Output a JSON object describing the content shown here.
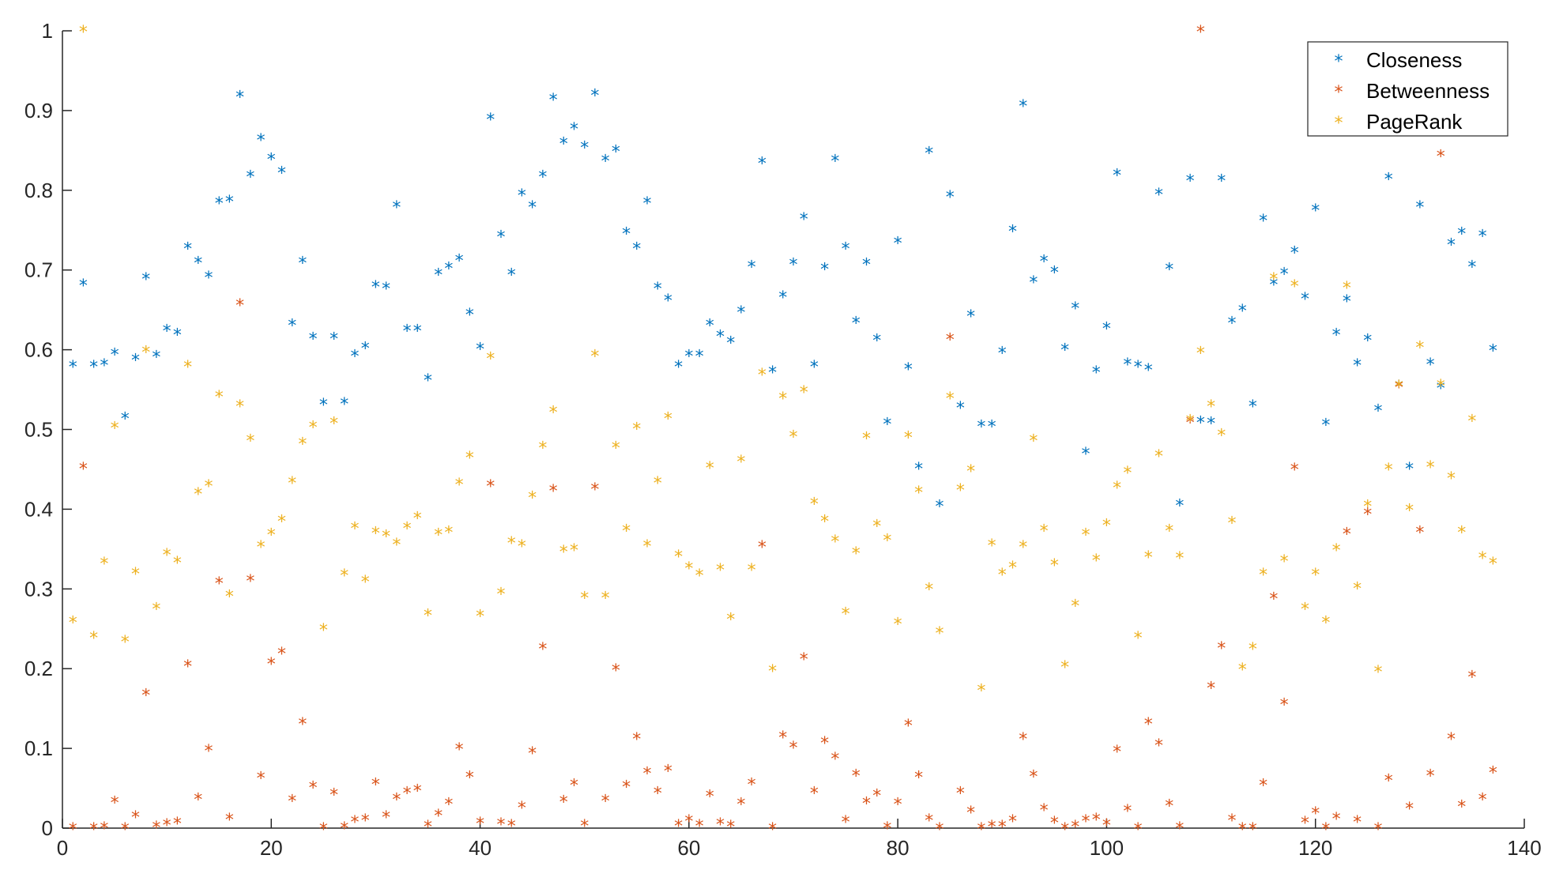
{
  "chart_data": {
    "type": "scatter",
    "title": "",
    "xlabel": "",
    "ylabel": "",
    "xlim": [
      0,
      140
    ],
    "ylim": [
      0,
      1
    ],
    "xticks": [
      "0",
      "20",
      "40",
      "60",
      "80",
      "100",
      "120",
      "140"
    ],
    "yticks": [
      "0",
      "0.1",
      "0.2",
      "0.3",
      "0.4",
      "0.5",
      "0.6",
      "0.7",
      "0.8",
      "0.9",
      "1"
    ],
    "grid": false,
    "marker": "*",
    "legend": {
      "position": "top-right"
    },
    "series": [
      {
        "name": "Closeness",
        "color": "#0072BD",
        "x": [
          1,
          2,
          3,
          4,
          5,
          6,
          7,
          8,
          9,
          10,
          11,
          12,
          13,
          14,
          15,
          16,
          17,
          18,
          19,
          20,
          21,
          22,
          23,
          24,
          25,
          26,
          27,
          28,
          29,
          30,
          31,
          32,
          33,
          34,
          35,
          36,
          37,
          38,
          39,
          40,
          41,
          42,
          43,
          44,
          45,
          46,
          47,
          48,
          49,
          50,
          51,
          52,
          53,
          54,
          55,
          56,
          57,
          58,
          59,
          60,
          61,
          62,
          63,
          64,
          65,
          66,
          67,
          68,
          69,
          70,
          71,
          72,
          73,
          74,
          75,
          76,
          77,
          78,
          79,
          80,
          81,
          82,
          83,
          84,
          85,
          86,
          87,
          88,
          89,
          90,
          91,
          92,
          93,
          94,
          95,
          96,
          97,
          98,
          99,
          100,
          101,
          102,
          103,
          104,
          105,
          106,
          107,
          108,
          109,
          110,
          111,
          112,
          113,
          114,
          115,
          116,
          117,
          118,
          119,
          120,
          121,
          122,
          123,
          124,
          125,
          126,
          127,
          128,
          129,
          130,
          131,
          132,
          133,
          134,
          135,
          136,
          137
        ],
        "y": [
          0.58,
          0.682,
          0.58,
          0.582,
          0.595,
          0.515,
          0.588,
          0.69,
          0.592,
          0.625,
          0.62,
          0.728,
          0.71,
          0.692,
          0.785,
          0.787,
          0.918,
          0.818,
          0.864,
          0.84,
          0.823,
          0.632,
          0.71,
          0.615,
          0.532,
          0.615,
          0.533,
          0.593,
          0.603,
          0.68,
          0.678,
          0.78,
          0.625,
          0.625,
          0.563,
          0.695,
          0.703,
          0.713,
          0.645,
          0.602,
          0.89,
          0.743,
          0.695,
          0.795,
          0.78,
          0.818,
          0.915,
          0.86,
          0.878,
          0.855,
          0.92,
          0.838,
          0.85,
          0.747,
          0.728,
          0.785,
          0.678,
          0.663,
          0.58,
          0.593,
          0.593,
          0.632,
          0.618,
          0.61,
          0.648,
          0.705,
          0.835,
          0.573,
          0.667,
          0.708,
          0.765,
          0.58,
          0.702,
          0.838,
          0.728,
          0.635,
          0.708,
          0.613,
          0.508,
          0.735,
          0.577,
          0.452,
          0.848,
          0.405,
          0.793,
          0.528,
          0.643,
          0.505,
          0.505,
          0.597,
          0.75,
          0.907,
          0.686,
          0.712,
          0.698,
          0.601,
          0.653,
          0.471,
          0.573,
          0.628,
          0.82,
          0.583,
          0.58,
          0.576,
          0.796,
          0.702,
          0.406,
          0.813,
          0.51,
          0.509,
          0.813,
          0.635,
          0.65,
          0.53,
          0.763,
          0.683,
          0.696,
          0.723,
          0.665,
          0.776,
          0.507,
          0.62,
          0.662,
          0.582,
          0.613,
          0.525,
          0.815,
          0.555,
          0.452,
          0.78,
          0.583,
          0.553,
          0.733,
          0.747,
          0.705,
          0.744,
          0.6
        ]
      },
      {
        "name": "Betweenness",
        "color": "#D95319",
        "x": [
          1,
          2,
          3,
          4,
          5,
          6,
          7,
          8,
          9,
          10,
          11,
          12,
          13,
          14,
          15,
          16,
          17,
          18,
          19,
          20,
          21,
          22,
          23,
          24,
          25,
          26,
          27,
          28,
          29,
          30,
          31,
          32,
          33,
          34,
          35,
          36,
          37,
          38,
          39,
          40,
          41,
          42,
          43,
          44,
          45,
          46,
          47,
          48,
          49,
          50,
          51,
          52,
          53,
          54,
          55,
          56,
          57,
          58,
          59,
          60,
          61,
          62,
          63,
          64,
          65,
          66,
          67,
          68,
          69,
          70,
          71,
          72,
          73,
          74,
          75,
          76,
          77,
          78,
          79,
          80,
          81,
          82,
          83,
          84,
          85,
          86,
          87,
          88,
          89,
          90,
          91,
          92,
          93,
          94,
          95,
          96,
          97,
          98,
          99,
          100,
          101,
          102,
          103,
          104,
          105,
          106,
          107,
          108,
          109,
          110,
          111,
          112,
          113,
          114,
          115,
          116,
          117,
          118,
          119,
          120,
          121,
          122,
          123,
          124,
          125,
          126,
          127,
          128,
          129,
          130,
          131,
          132,
          133,
          134,
          135,
          136,
          137
        ],
        "y": [
          0.0,
          0.452,
          0.0,
          0.001,
          0.033,
          0.0,
          0.015,
          0.168,
          0.002,
          0.005,
          0.007,
          0.204,
          0.037,
          0.098,
          0.308,
          0.012,
          0.657,
          0.311,
          0.064,
          0.207,
          0.22,
          0.035,
          0.132,
          0.052,
          0.0,
          0.043,
          0.001,
          0.009,
          0.011,
          0.056,
          0.015,
          0.037,
          0.045,
          0.048,
          0.003,
          0.017,
          0.031,
          0.1,
          0.065,
          0.007,
          0.43,
          0.006,
          0.004,
          0.027,
          0.095,
          0.226,
          0.424,
          0.034,
          0.055,
          0.004,
          0.426,
          0.035,
          0.199,
          0.053,
          0.113,
          0.07,
          0.045,
          0.073,
          0.004,
          0.01,
          0.004,
          0.041,
          0.006,
          0.003,
          0.031,
          0.056,
          0.354,
          0.0,
          0.115,
          0.102,
          0.213,
          0.045,
          0.108,
          0.088,
          0.009,
          0.067,
          0.032,
          0.042,
          0.001,
          0.031,
          0.13,
          0.065,
          0.011,
          0.0,
          0.614,
          0.045,
          0.021,
          0.0,
          0.003,
          0.003,
          0.01,
          0.113,
          0.066,
          0.024,
          0.008,
          0.0,
          0.003,
          0.01,
          0.012,
          0.005,
          0.097,
          0.023,
          0.0,
          0.132,
          0.105,
          0.029,
          0.001,
          0.51,
          1.0,
          0.177,
          0.227,
          0.011,
          0.0,
          0.0,
          0.055,
          0.289,
          0.156,
          0.451,
          0.008,
          0.02,
          0.0,
          0.013,
          0.37,
          0.009,
          0.395,
          0.0,
          0.061,
          0.554,
          0.026,
          0.372,
          0.067,
          0.844,
          0.113,
          0.028,
          0.191,
          0.037,
          0.071
        ]
      },
      {
        "name": "PageRank",
        "color": "#EDB120",
        "x": [
          1,
          2,
          3,
          4,
          5,
          6,
          7,
          8,
          9,
          10,
          11,
          12,
          13,
          14,
          15,
          16,
          17,
          18,
          19,
          20,
          21,
          22,
          23,
          24,
          25,
          26,
          27,
          28,
          29,
          30,
          31,
          32,
          33,
          34,
          35,
          36,
          37,
          38,
          39,
          40,
          41,
          42,
          43,
          44,
          45,
          46,
          47,
          48,
          49,
          50,
          51,
          52,
          53,
          54,
          55,
          56,
          57,
          58,
          59,
          60,
          61,
          62,
          63,
          64,
          65,
          66,
          67,
          68,
          69,
          70,
          71,
          72,
          73,
          74,
          75,
          76,
          77,
          78,
          79,
          80,
          81,
          82,
          83,
          84,
          85,
          86,
          87,
          88,
          89,
          90,
          91,
          92,
          93,
          94,
          95,
          96,
          97,
          98,
          99,
          100,
          101,
          102,
          103,
          104,
          105,
          106,
          107,
          108,
          109,
          110,
          111,
          112,
          113,
          114,
          115,
          116,
          117,
          118,
          119,
          120,
          121,
          122,
          123,
          124,
          125,
          126,
          127,
          128,
          129,
          130,
          131,
          132,
          133,
          134,
          135,
          136,
          137
        ],
        "y": [
          0.259,
          1.0,
          0.24,
          0.333,
          0.503,
          0.235,
          0.32,
          0.598,
          0.276,
          0.344,
          0.334,
          0.58,
          0.42,
          0.43,
          0.542,
          0.292,
          0.53,
          0.487,
          0.354,
          0.369,
          0.386,
          0.434,
          0.483,
          0.504,
          0.25,
          0.509,
          0.318,
          0.377,
          0.31,
          0.371,
          0.367,
          0.357,
          0.377,
          0.39,
          0.268,
          0.369,
          0.372,
          0.432,
          0.466,
          0.267,
          0.59,
          0.295,
          0.359,
          0.355,
          0.416,
          0.478,
          0.523,
          0.348,
          0.35,
          0.29,
          0.593,
          0.29,
          0.478,
          0.374,
          0.502,
          0.355,
          0.434,
          0.515,
          0.342,
          0.327,
          0.318,
          0.453,
          0.325,
          0.263,
          0.461,
          0.325,
          0.57,
          0.198,
          0.54,
          0.492,
          0.548,
          0.408,
          0.386,
          0.361,
          0.27,
          0.346,
          0.49,
          0.38,
          0.362,
          0.257,
          0.491,
          0.422,
          0.301,
          0.246,
          0.54,
          0.425,
          0.449,
          0.174,
          0.356,
          0.319,
          0.328,
          0.354,
          0.487,
          0.374,
          0.331,
          0.203,
          0.28,
          0.369,
          0.337,
          0.381,
          0.428,
          0.447,
          0.24,
          0.341,
          0.468,
          0.374,
          0.34,
          0.512,
          0.597,
          0.53,
          0.494,
          0.384,
          0.2,
          0.226,
          0.319,
          0.69,
          0.336,
          0.681,
          0.276,
          0.319,
          0.259,
          0.35,
          0.679,
          0.302,
          0.405,
          0.197,
          0.451,
          0.555,
          0.4,
          0.604,
          0.454,
          0.556,
          0.44,
          0.372,
          0.512,
          0.34,
          0.333
        ]
      }
    ]
  }
}
